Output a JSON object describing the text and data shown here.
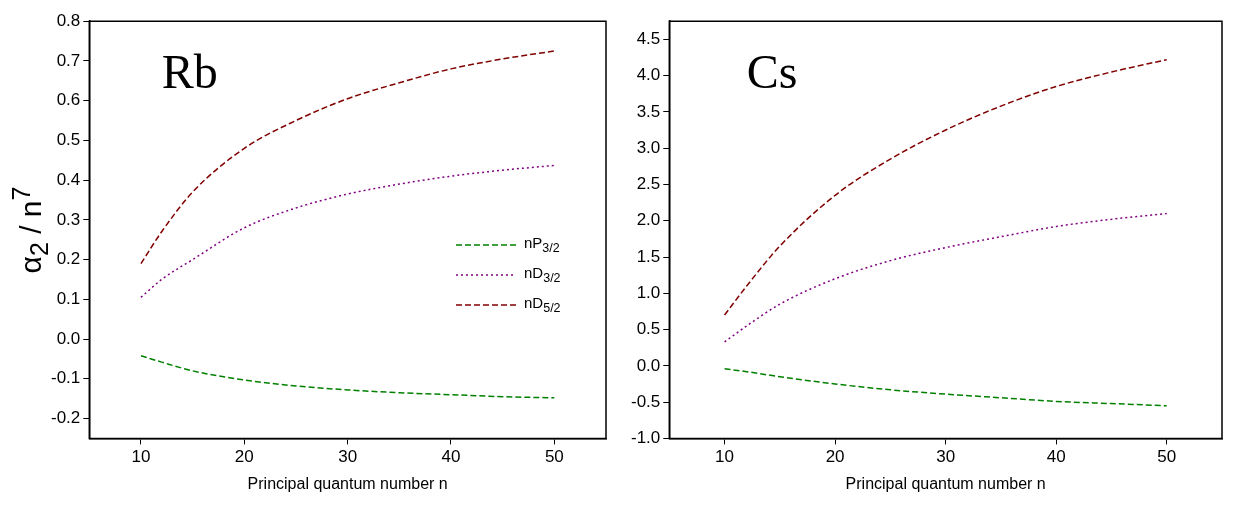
{
  "chart_data": [
    {
      "type": "line",
      "xlabel": "Principal quantum number n",
      "ylabel": "α$_{2}$ / n$^{7}$",
      "annotations": [
        "Rb"
      ],
      "x": [
        10,
        12,
        15,
        20,
        25,
        30,
        35,
        40,
        45,
        50
      ],
      "xlim": [
        5,
        55
      ],
      "xticks": [
        10,
        20,
        30,
        40,
        50
      ],
      "ylim": [
        -0.25,
        0.8
      ],
      "yticks": [
        -0.2,
        -0.1,
        {
          "value": 0,
          "label": "0.0"
        },
        0.1,
        0.2,
        0.3,
        0.4,
        0.5,
        0.6,
        0.7,
        0.8
      ],
      "grid": false,
      "legend": "right",
      "marker": "none",
      "series": [
        {
          "name": "nP$_{3/2}$",
          "color": "#008000",
          "line_style": "dashed",
          "values": [
            -0.042,
            -0.058,
            -0.08,
            -0.103,
            -0.118,
            -0.128,
            -0.135,
            -0.14,
            -0.145,
            -0.148
          ]
        },
        {
          "name": "nD$_{3/2}$",
          "color": "#800080",
          "line_style": "dotted",
          "values": [
            0.105,
            0.15,
            0.2,
            0.28,
            0.33,
            0.365,
            0.39,
            0.41,
            0.425,
            0.437
          ]
        },
        {
          "name": "nD$_{5/2}$",
          "color": "#800000",
          "line_style": "dashed",
          "values": [
            0.19,
            0.27,
            0.37,
            0.48,
            0.55,
            0.605,
            0.645,
            0.68,
            0.705,
            0.725
          ]
        }
      ]
    },
    {
      "type": "line",
      "xlabel": "Principal quantum number n",
      "annotations": [
        "Cs"
      ],
      "x": [
        10,
        12,
        15,
        20,
        25,
        30,
        35,
        40,
        45,
        50
      ],
      "xlim": [
        5,
        55
      ],
      "xticks": [
        10,
        20,
        30,
        40,
        50
      ],
      "ylim": [
        -1,
        4.75
      ],
      "yticks": [
        {
          "value": -1,
          "label": "-1.0"
        },
        -0.5,
        {
          "value": 0,
          "label": "0.0"
        },
        0.5,
        {
          "value": 1,
          "label": "1.0"
        },
        1.5,
        {
          "value": 2,
          "label": "2.0"
        },
        2.5,
        {
          "value": 3,
          "label": "3.0"
        },
        3.5,
        {
          "value": 4,
          "label": "4.0"
        },
        4.5
      ],
      "grid": false,
      "marker": "none",
      "series": [
        {
          "color": "#008000",
          "line_style": "dashed",
          "values": [
            -0.04,
            -0.08,
            -0.15,
            -0.25,
            -0.33,
            -0.39,
            -0.44,
            -0.49,
            -0.52,
            -0.55
          ]
        },
        {
          "color": "#800080",
          "line_style": "dotted",
          "values": [
            0.33,
            0.55,
            0.85,
            1.2,
            1.45,
            1.63,
            1.78,
            1.92,
            2.02,
            2.1
          ]
        },
        {
          "color": "#800000",
          "line_style": "dashed",
          "values": [
            0.7,
            1.1,
            1.65,
            2.35,
            2.85,
            3.25,
            3.58,
            3.85,
            4.05,
            4.22
          ]
        }
      ]
    }
  ]
}
